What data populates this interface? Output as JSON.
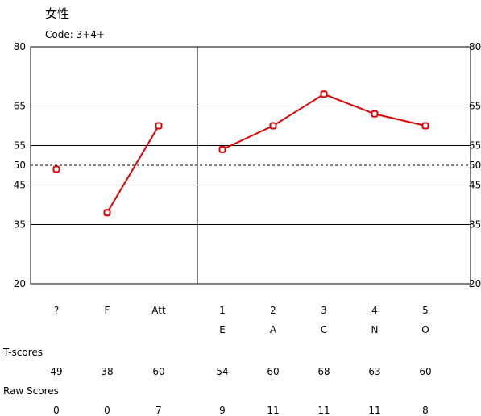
{
  "header": {
    "title": "女性",
    "code": "Code: 3+4+"
  },
  "chart_data": {
    "type": "line",
    "title": "",
    "ylim": [
      20,
      80
    ],
    "yticks": [
      20,
      35,
      45,
      50,
      55,
      65,
      80
    ],
    "reference_line": 50,
    "grid": true,
    "categories": [
      "?",
      "F",
      "Att",
      "1",
      "2",
      "3",
      "4",
      "5"
    ],
    "subcategories": [
      "",
      "",
      "",
      "E",
      "A",
      "C",
      "N",
      "O"
    ],
    "series": [
      {
        "values": [
          49,
          38,
          60,
          54,
          60,
          68,
          63,
          60
        ],
        "color": "#e00000"
      }
    ],
    "line_groups": [
      [
        0,
        0
      ],
      [
        1,
        2
      ],
      [
        3,
        7
      ]
    ]
  },
  "table": {
    "t_scores_label": "T-scores",
    "t_scores": [
      "49",
      "38",
      "60",
      "54",
      "60",
      "68",
      "63",
      "60"
    ],
    "raw_scores_label": "Raw Scores",
    "raw_scores": [
      "0",
      "0",
      "7",
      "9",
      "11",
      "11",
      "11",
      "8"
    ]
  }
}
